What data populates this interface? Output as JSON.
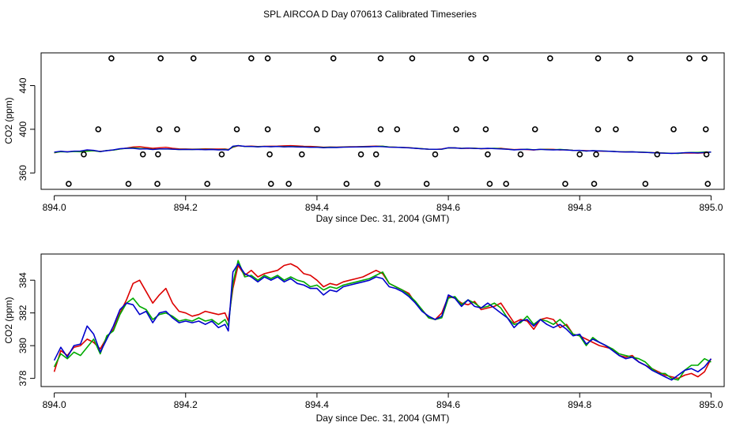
{
  "title": "SPL AIRCOA D  Day 070613  Calibrated Timeseries",
  "chart_data": [
    {
      "type": "scatter+line",
      "name": "overview",
      "xlabel": "Day since Dec. 31, 2004 (GMT)",
      "ylabel": "CO2 (ppm)",
      "xlim": [
        893.98,
        895.02
      ],
      "ylim": [
        345,
        470
      ],
      "xticks": [
        894.0,
        894.2,
        894.4,
        894.6,
        894.8,
        895.0
      ],
      "xtick_labels": [
        "894.0",
        "894.2",
        "894.4",
        "894.6",
        "894.8",
        "895.0"
      ],
      "yticks": [
        360,
        400,
        440
      ],
      "ytick_labels": [
        "360",
        "400",
        "440"
      ],
      "points": {
        "marker": "open-circle",
        "color": "#000000",
        "x": [
          894.087,
          894.162,
          894.212,
          894.3,
          894.325,
          894.425,
          894.497,
          894.545,
          894.635,
          894.657,
          894.755,
          894.828,
          894.877,
          894.967,
          894.99,
          894.067,
          894.16,
          894.187,
          894.278,
          894.325,
          894.4,
          894.497,
          894.522,
          894.612,
          894.657,
          894.732,
          894.828,
          894.855,
          894.943,
          894.992,
          894.045,
          894.135,
          894.158,
          894.255,
          894.328,
          894.377,
          894.467,
          894.49,
          894.58,
          894.66,
          894.71,
          894.8,
          894.825,
          894.918,
          894.993,
          894.022,
          894.113,
          894.157,
          894.233,
          894.33,
          894.357,
          894.445,
          894.492,
          894.567,
          894.663,
          894.688,
          894.778,
          894.822,
          894.9,
          894.995
        ],
        "y": [
          465,
          465,
          465,
          465,
          465,
          465,
          465,
          465,
          465,
          465,
          465,
          465,
          465,
          465,
          465,
          400,
          400,
          400,
          400,
          400,
          400,
          400,
          400,
          400,
          400,
          400,
          400,
          400,
          400,
          400,
          377,
          377,
          377,
          377,
          377,
          377,
          377,
          377,
          377,
          377,
          377,
          377,
          377,
          377,
          377,
          350,
          350,
          350,
          350,
          350,
          350,
          350,
          350,
          350,
          350,
          350,
          350,
          350,
          350,
          350
        ]
      }
    },
    {
      "type": "line",
      "name": "detail",
      "xlabel": "Day since Dec. 31, 2004 (GMT)",
      "ylabel": "CO2 (ppm)",
      "xlim": [
        893.98,
        895.02
      ],
      "ylim": [
        377.5,
        385.6
      ],
      "xticks": [
        894.0,
        894.2,
        894.4,
        894.6,
        894.8,
        895.0
      ],
      "xtick_labels": [
        "894.0",
        "894.2",
        "894.4",
        "894.6",
        "894.8",
        "895.0"
      ],
      "yticks": [
        378,
        380,
        382,
        384
      ],
      "ytick_labels": [
        "378",
        "380",
        "382",
        "384"
      ],
      "x": [
        894.0,
        894.01,
        894.02,
        894.03,
        894.04,
        894.05,
        894.06,
        894.07,
        894.08,
        894.09,
        894.1,
        894.11,
        894.12,
        894.13,
        894.14,
        894.15,
        894.16,
        894.17,
        894.18,
        894.19,
        894.2,
        894.21,
        894.22,
        894.23,
        894.24,
        894.25,
        894.26,
        894.265,
        894.272,
        894.28,
        894.29,
        894.3,
        894.31,
        894.32,
        894.33,
        894.34,
        894.35,
        894.36,
        894.37,
        894.38,
        894.39,
        894.4,
        894.41,
        894.42,
        894.43,
        894.44,
        894.45,
        894.46,
        894.47,
        894.48,
        894.49,
        894.5,
        894.51,
        894.52,
        894.53,
        894.54,
        894.55,
        894.56,
        894.57,
        894.58,
        894.59,
        894.6,
        894.61,
        894.62,
        894.63,
        894.64,
        894.65,
        894.66,
        894.67,
        894.68,
        894.69,
        894.7,
        894.71,
        894.72,
        894.73,
        894.74,
        894.75,
        894.76,
        894.77,
        894.78,
        894.79,
        894.8,
        894.81,
        894.82,
        894.83,
        894.84,
        894.85,
        894.86,
        894.87,
        894.88,
        894.89,
        894.9,
        894.91,
        894.92,
        894.93,
        894.94,
        894.95,
        894.96,
        894.97,
        894.98,
        894.99,
        895.0
      ],
      "series": [
        {
          "name": "red",
          "color": "#dd0000",
          "values": [
            378.4,
            379.7,
            379.4,
            379.9,
            380.0,
            380.4,
            380.2,
            379.8,
            380.5,
            381.0,
            382.0,
            382.8,
            383.8,
            384.0,
            383.3,
            382.6,
            383.1,
            383.5,
            382.6,
            382.1,
            382.0,
            381.8,
            381.9,
            382.1,
            382.0,
            381.9,
            382.0,
            381.5,
            383.5,
            384.9,
            384.3,
            384.6,
            384.2,
            384.4,
            384.5,
            384.6,
            384.9,
            385.0,
            384.8,
            384.4,
            384.3,
            384.0,
            383.6,
            383.8,
            383.7,
            383.9,
            384.0,
            384.1,
            384.2,
            384.4,
            384.6,
            384.4,
            383.8,
            383.6,
            383.4,
            383.2,
            382.6,
            382.2,
            381.7,
            381.6,
            382.0,
            383.0,
            382.9,
            382.6,
            382.5,
            382.7,
            382.2,
            382.3,
            382.4,
            382.6,
            382.0,
            381.4,
            381.6,
            381.5,
            381.0,
            381.6,
            381.7,
            381.6,
            381.1,
            381.3,
            380.7,
            380.6,
            380.4,
            380.2,
            380.0,
            379.9,
            379.8,
            379.4,
            379.3,
            379.4,
            379.0,
            378.8,
            378.6,
            378.4,
            378.2,
            378.1,
            378.0,
            378.2,
            378.3,
            378.1,
            378.4,
            379.2
          ]
        },
        {
          "name": "green",
          "color": "#00aa00",
          "values": [
            378.7,
            379.5,
            379.2,
            379.6,
            379.4,
            379.9,
            380.4,
            379.5,
            380.6,
            380.9,
            381.9,
            382.6,
            382.9,
            382.4,
            382.2,
            381.6,
            381.9,
            382.0,
            381.8,
            381.5,
            381.6,
            381.5,
            381.7,
            381.5,
            381.6,
            381.3,
            381.6,
            381.2,
            383.8,
            385.2,
            384.2,
            384.3,
            384.0,
            384.3,
            384.1,
            384.3,
            384.0,
            384.2,
            384.0,
            383.9,
            383.6,
            383.7,
            383.4,
            383.6,
            383.5,
            383.7,
            383.8,
            383.9,
            384.0,
            384.1,
            384.3,
            384.5,
            383.8,
            383.6,
            383.4,
            383.1,
            382.7,
            382.2,
            381.7,
            381.6,
            381.7,
            382.9,
            383.0,
            382.5,
            382.8,
            382.6,
            382.3,
            382.4,
            382.6,
            382.3,
            381.7,
            381.3,
            381.4,
            381.8,
            381.3,
            381.6,
            381.5,
            381.3,
            381.6,
            381.2,
            380.7,
            380.6,
            380.0,
            380.5,
            380.2,
            380.0,
            379.8,
            379.5,
            379.4,
            379.3,
            379.2,
            379.0,
            378.6,
            378.3,
            378.3,
            378.0,
            377.9,
            378.5,
            378.8,
            378.8,
            379.2,
            379.0
          ]
        },
        {
          "name": "blue",
          "color": "#0000cc",
          "values": [
            379.1,
            379.9,
            379.3,
            380.0,
            380.1,
            381.2,
            380.7,
            379.6,
            380.4,
            381.2,
            382.2,
            382.6,
            382.5,
            381.9,
            382.1,
            381.4,
            382.0,
            382.1,
            381.7,
            381.4,
            381.5,
            381.4,
            381.5,
            381.3,
            381.5,
            381.1,
            381.3,
            380.9,
            384.5,
            385.0,
            384.4,
            384.2,
            383.9,
            384.2,
            384.0,
            384.2,
            383.9,
            384.1,
            383.8,
            383.7,
            383.5,
            383.5,
            383.1,
            383.4,
            383.3,
            383.6,
            383.7,
            383.8,
            383.9,
            384.0,
            384.2,
            384.1,
            383.6,
            383.5,
            383.3,
            383.0,
            382.6,
            382.1,
            381.8,
            381.6,
            381.8,
            383.1,
            382.9,
            382.4,
            382.8,
            382.4,
            382.3,
            382.6,
            382.3,
            382.0,
            381.7,
            381.1,
            381.5,
            381.6,
            381.2,
            381.6,
            381.3,
            381.1,
            381.3,
            381.0,
            380.6,
            380.7,
            380.1,
            380.4,
            380.2,
            380.0,
            379.7,
            379.4,
            379.2,
            379.3,
            379.0,
            378.8,
            378.5,
            378.3,
            378.1,
            377.9,
            378.2,
            378.5,
            378.6,
            378.4,
            378.7,
            379.2
          ]
        }
      ]
    }
  ]
}
